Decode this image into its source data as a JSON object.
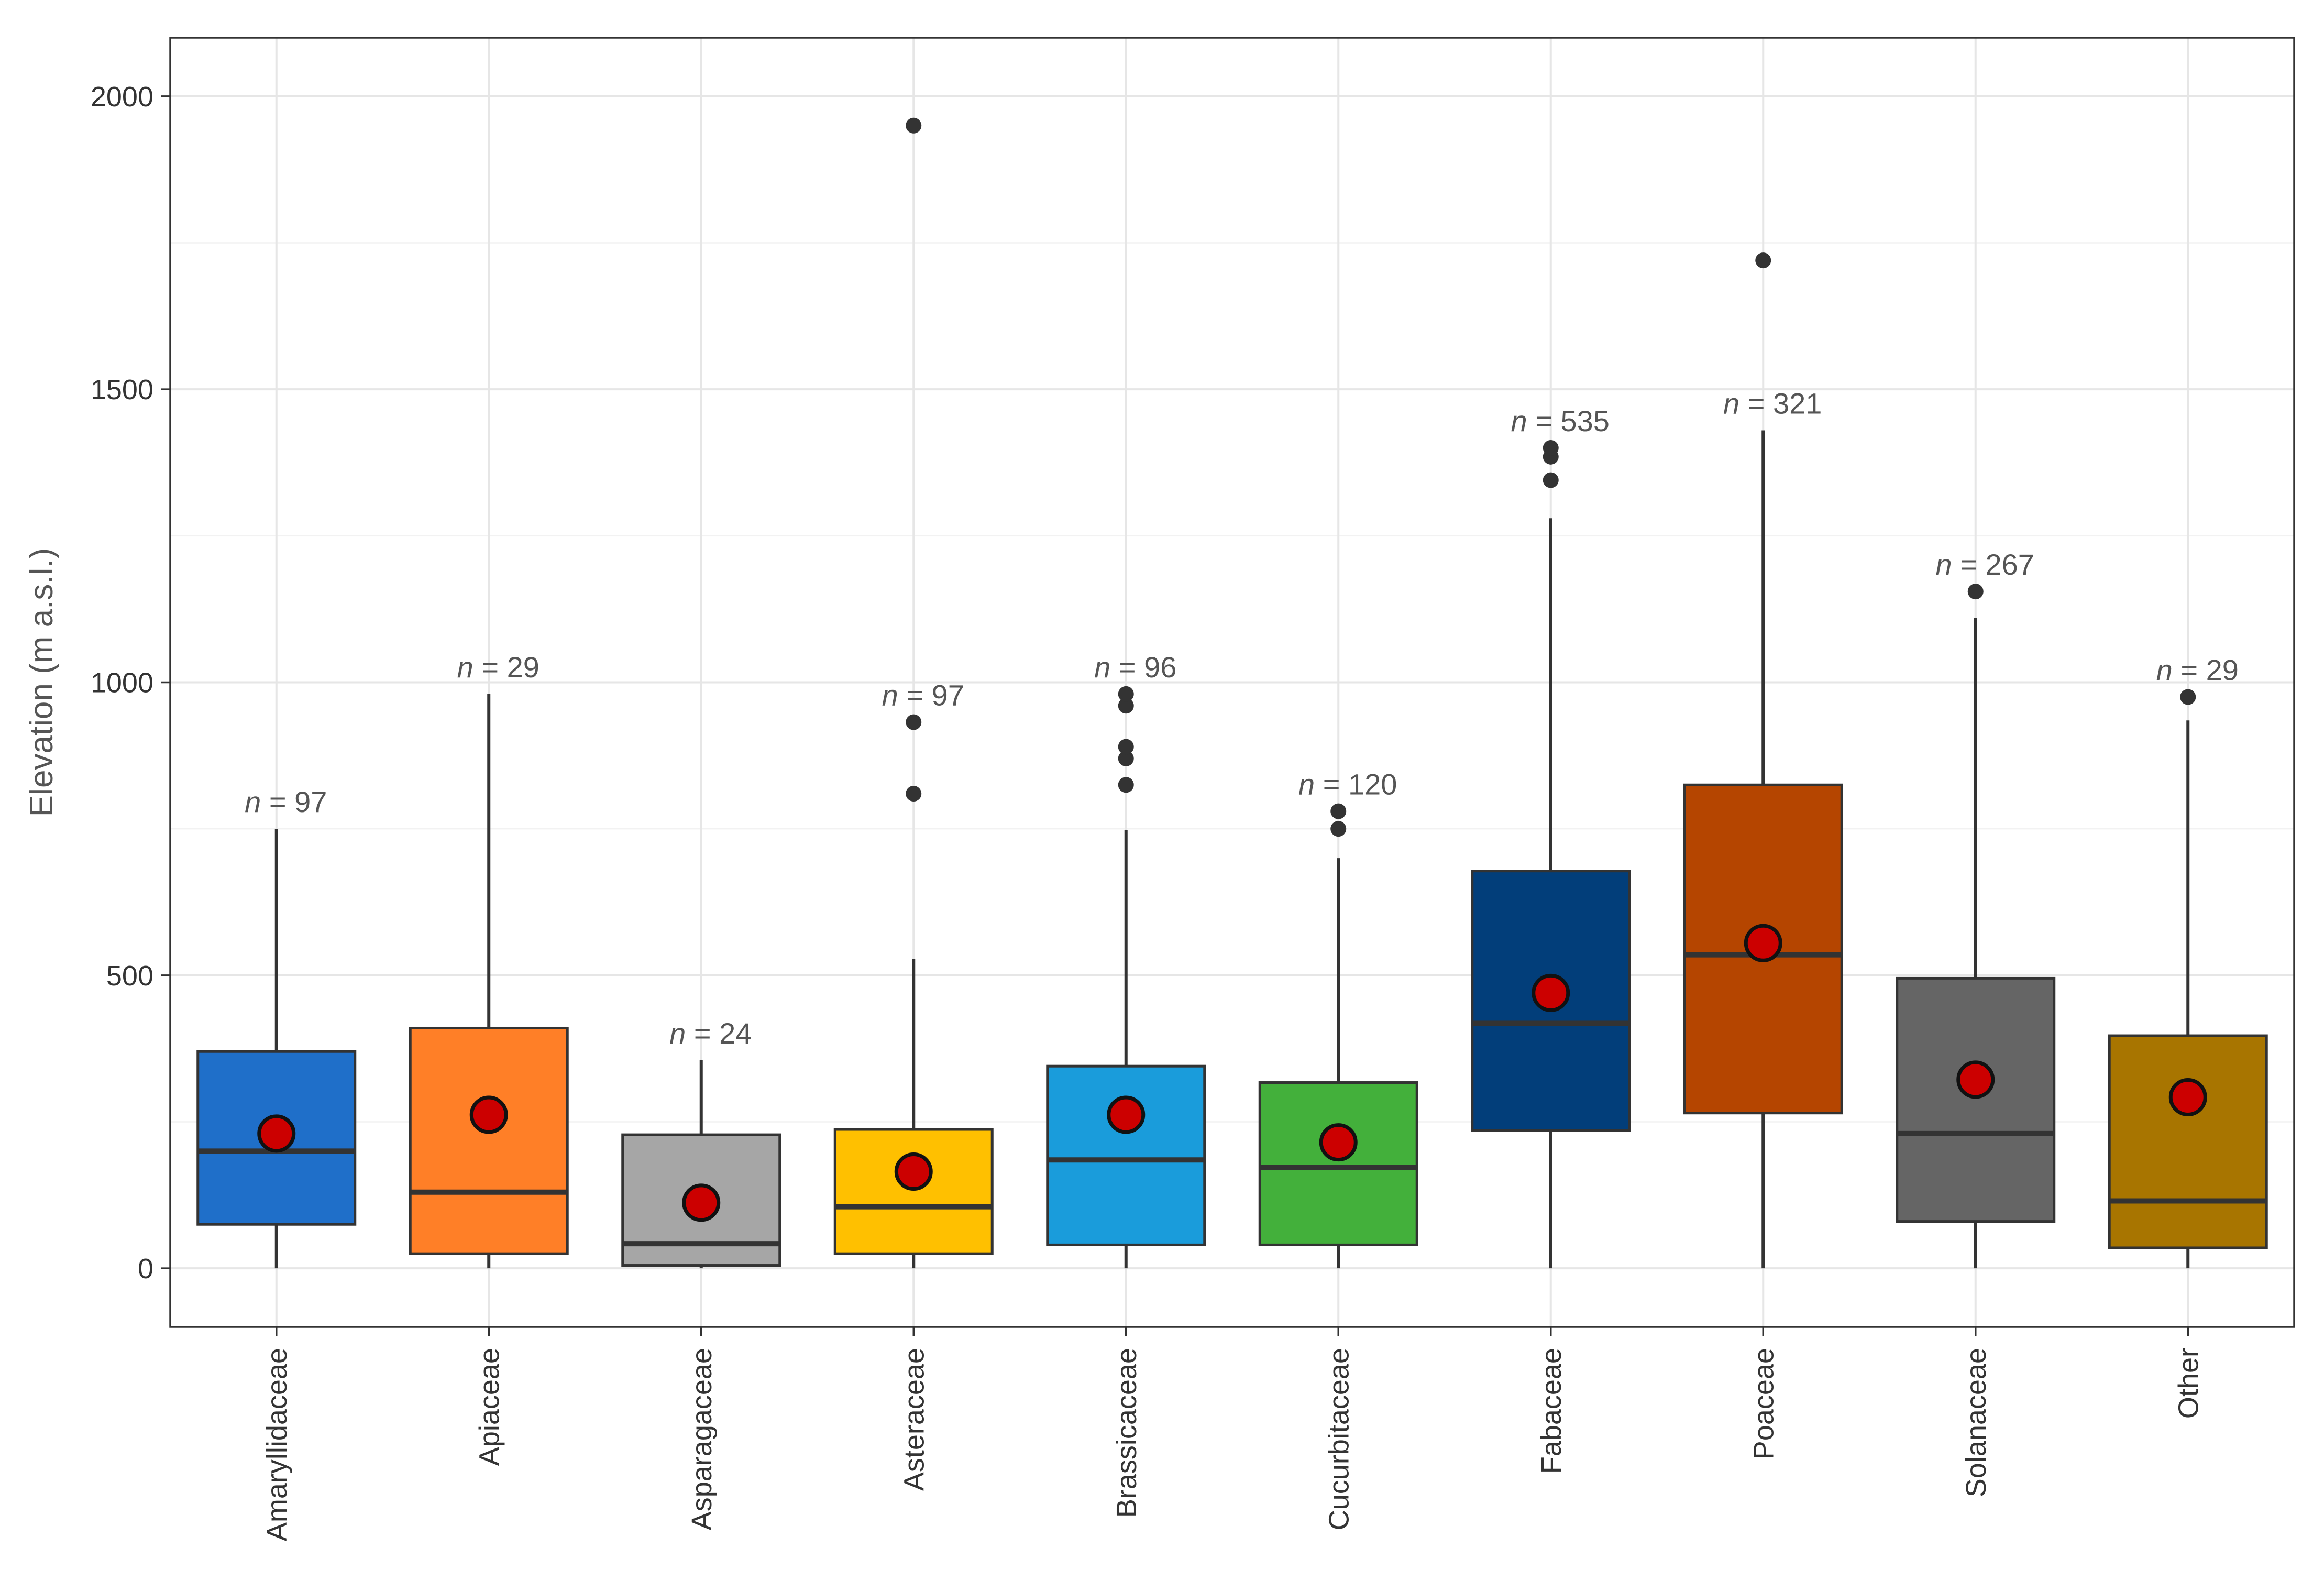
{
  "chart_data": {
    "type": "box",
    "title": "",
    "xlabel": "",
    "ylabel": "Elevation (m a.s.l.)",
    "ylim": [
      -100,
      2100
    ],
    "y_ticks": [
      0,
      500,
      1000,
      1500,
      2000
    ],
    "y_tick_labels": [
      "0",
      "500",
      "1000",
      "1500",
      "2000"
    ],
    "grid": true,
    "legend": "none",
    "n_prefix": "n",
    "n_suffix": " = ",
    "series": [
      {
        "category": "Amaryllidaceae",
        "color": "#1f6fc9",
        "n": "97",
        "min": 0,
        "q1": 75,
        "median": 200,
        "q3": 370,
        "max": 750,
        "mean": 230,
        "outliers": []
      },
      {
        "category": "Apiaceae",
        "color": "#ff7f27",
        "n": "29",
        "min": 0,
        "q1": 25,
        "median": 130,
        "q3": 410,
        "max": 980,
        "mean": 262,
        "outliers": []
      },
      {
        "category": "Asparagaceae",
        "color": "#a6a6a6",
        "n": "24",
        "min": 0,
        "q1": 5,
        "median": 42,
        "q3": 228,
        "max": 355,
        "mean": 112,
        "outliers": []
      },
      {
        "category": "Asteraceae",
        "color": "#ffc000",
        "n": "97",
        "min": 0,
        "q1": 25,
        "median": 105,
        "q3": 237,
        "max": 528,
        "mean": 165,
        "outliers": [
          810,
          932,
          1950
        ]
      },
      {
        "category": "Brassicaceae",
        "color": "#1a9cdb",
        "n": "96",
        "min": 0,
        "q1": 40,
        "median": 185,
        "q3": 345,
        "max": 748,
        "mean": 262,
        "outliers": [
          825,
          870,
          890,
          960,
          980
        ]
      },
      {
        "category": "Cucurbitaceae",
        "color": "#43b03b",
        "n": "120",
        "min": 0,
        "q1": 40,
        "median": 172,
        "q3": 317,
        "max": 700,
        "mean": 215,
        "outliers": [
          750,
          780
        ]
      },
      {
        "category": "Fabaceae",
        "color": "#023e7a",
        "n": "535",
        "min": 0,
        "q1": 235,
        "median": 418,
        "q3": 678,
        "max": 1280,
        "mean": 470,
        "outliers": [
          1345,
          1385,
          1400
        ]
      },
      {
        "category": "Poaceae",
        "color": "#b54500",
        "n": "321",
        "min": 0,
        "q1": 265,
        "median": 535,
        "q3": 825,
        "max": 1430,
        "mean": 555,
        "outliers": [
          1720
        ]
      },
      {
        "category": "Solanaceae",
        "color": "#656565",
        "n": "267",
        "min": 0,
        "q1": 80,
        "median": 230,
        "q3": 495,
        "max": 1110,
        "mean": 322,
        "outliers": [
          1155
        ]
      },
      {
        "category": "Other",
        "color": "#a87500",
        "n": "29",
        "min": 0,
        "q1": 35,
        "median": 115,
        "q3": 397,
        "max": 935,
        "mean": 292,
        "outliers": [
          975
        ]
      }
    ]
  }
}
